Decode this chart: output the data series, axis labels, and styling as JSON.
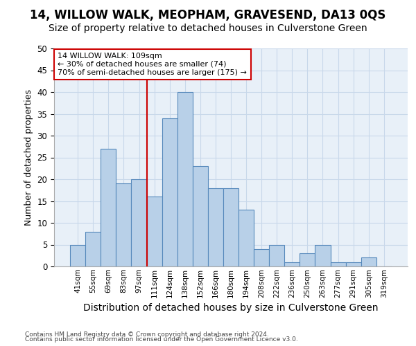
{
  "title": "14, WILLOW WALK, MEOPHAM, GRAVESEND, DA13 0QS",
  "subtitle": "Size of property relative to detached houses in Culverstone Green",
  "xlabel": "Distribution of detached houses by size in Culverstone Green",
  "ylabel": "Number of detached properties",
  "bar_labels": [
    "41sqm",
    "55sqm",
    "69sqm",
    "83sqm",
    "97sqm",
    "111sqm",
    "124sqm",
    "138sqm",
    "152sqm",
    "166sqm",
    "180sqm",
    "194sqm",
    "208sqm",
    "222sqm",
    "236sqm",
    "250sqm",
    "263sqm",
    "277sqm",
    "291sqm",
    "305sqm",
    "319sqm"
  ],
  "bar_values": [
    5,
    8,
    27,
    19,
    20,
    16,
    34,
    40,
    23,
    18,
    18,
    13,
    4,
    5,
    1,
    3,
    5,
    1,
    1,
    2,
    0
  ],
  "bar_color": "#b8d0e8",
  "bar_edge_color": "#5588bb",
  "grid_color": "#c8d8ea",
  "background_color": "#e8f0f8",
  "vline_color": "#cc0000",
  "annotation_text": "14 WILLOW WALK: 109sqm\n← 30% of detached houses are smaller (74)\n70% of semi-detached houses are larger (175) →",
  "annotation_box_color": "#ffffff",
  "annotation_box_edge": "#cc0000",
  "footer1": "Contains HM Land Registry data © Crown copyright and database right 2024.",
  "footer2": "Contains public sector information licensed under the Open Government Licence v3.0.",
  "ylim": [
    0,
    50
  ],
  "yticks": [
    0,
    5,
    10,
    15,
    20,
    25,
    30,
    35,
    40,
    45,
    50
  ],
  "title_fontsize": 12,
  "subtitle_fontsize": 10,
  "ylabel_fontsize": 9,
  "xlabel_fontsize": 10
}
